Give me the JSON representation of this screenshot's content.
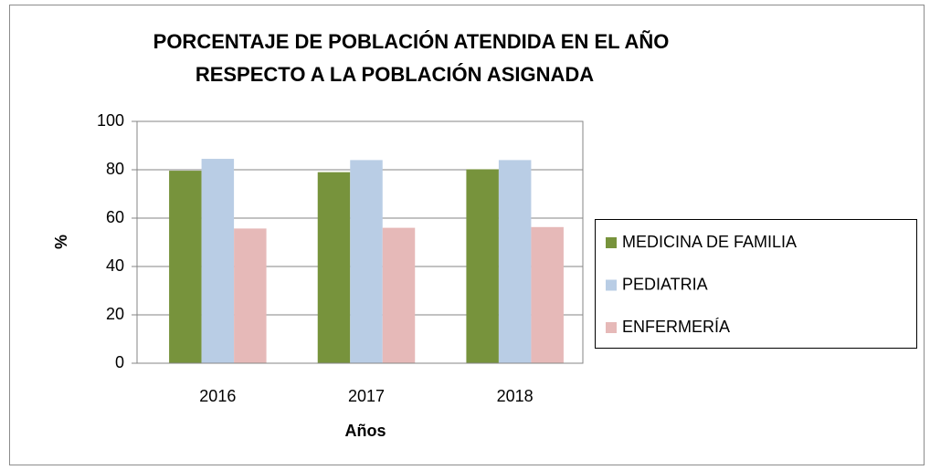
{
  "chart_data": {
    "type": "bar",
    "title": [
      "PORCENTAJE DE POBLACIÓN ATENDIDA EN EL AÑO",
      "RESPECTO A LA POBLACIÓN ASIGNADA"
    ],
    "xlabel": "Años",
    "ylabel": "%",
    "categories": [
      "2016",
      "2017",
      "2018"
    ],
    "series": [
      {
        "name": "MEDICINA DE FAMILIA",
        "color": "#77933c",
        "values": [
          79.6,
          79,
          80.2
        ]
      },
      {
        "name": "PEDIATRIA",
        "color": "#b9cde5",
        "values": [
          84.5,
          84,
          84
        ]
      },
      {
        "name": "ENFERMERÍA",
        "color": "#e6b9b8",
        "values": [
          55.7,
          56,
          56.3
        ]
      }
    ],
    "ylim": [
      0,
      100
    ],
    "yticks": [
      0,
      20,
      40,
      60,
      80,
      100
    ],
    "grid": true,
    "legend": "right"
  }
}
